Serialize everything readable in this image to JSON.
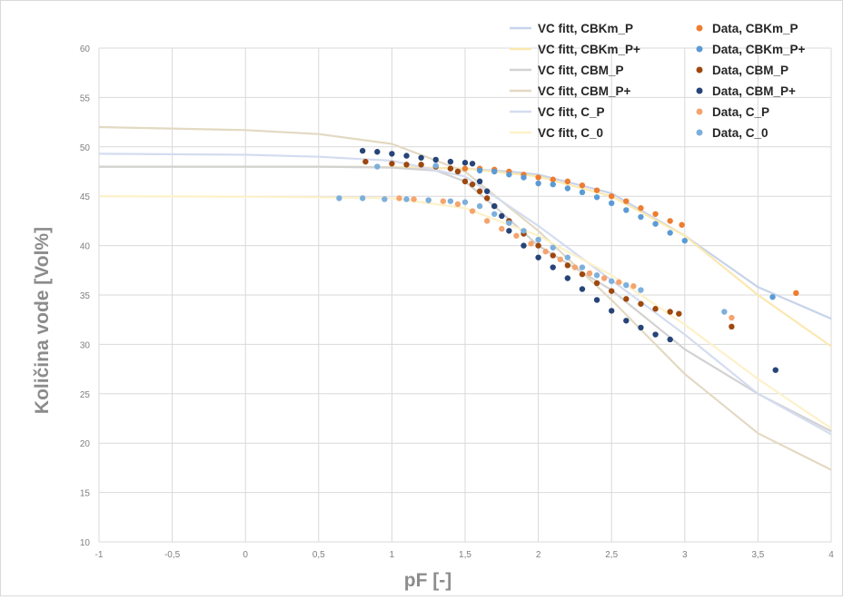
{
  "chart_data": {
    "type": "scatter",
    "title": "",
    "xlabel": "pF [-]",
    "ylabel": "Količina vode [Vol%]",
    "xlim": [
      -1,
      4
    ],
    "ylim": [
      10,
      60
    ],
    "x_ticks": [
      -1,
      -0.5,
      0,
      0.5,
      1,
      1.5,
      2,
      2.5,
      3,
      3.5,
      4
    ],
    "x_tick_labels": [
      "-1",
      "-0,5",
      "0",
      "0,5",
      "1",
      "1,5",
      "2",
      "2,5",
      "3",
      "3,5",
      "4"
    ],
    "y_ticks": [
      10,
      15,
      20,
      25,
      30,
      35,
      40,
      45,
      50,
      55,
      60
    ],
    "y_tick_labels": [
      "10",
      "15",
      "20",
      "25",
      "30",
      "35",
      "40",
      "45",
      "50",
      "55",
      "60"
    ],
    "grid": true,
    "legend": "top-right",
    "fit_series": [
      {
        "name": "VC fitt, CBKm_P",
        "color": "#c7d3ea",
        "points": [
          [
            -1,
            48.0
          ],
          [
            0,
            48.0
          ],
          [
            0.5,
            48.0
          ],
          [
            1,
            47.95
          ],
          [
            1.5,
            47.8
          ],
          [
            1.8,
            47.5
          ],
          [
            2.0,
            47.2
          ],
          [
            2.5,
            45.3
          ],
          [
            3.0,
            41.0
          ],
          [
            3.5,
            35.8
          ],
          [
            4,
            32.6
          ]
        ]
      },
      {
        "name": "VC fitt, CBKm_P+",
        "color": "#fbe8b0",
        "points": [
          [
            -1,
            48.0
          ],
          [
            0,
            48.0
          ],
          [
            0.5,
            48.0
          ],
          [
            1,
            47.95
          ],
          [
            1.5,
            47.8
          ],
          [
            2.0,
            47.0
          ],
          [
            2.5,
            45.0
          ],
          [
            3.0,
            41.0
          ],
          [
            3.5,
            35.0
          ],
          [
            4,
            29.8
          ]
        ]
      },
      {
        "name": "VC fitt, CBM_P",
        "color": "#d2d2d2",
        "points": [
          [
            -1,
            48.0
          ],
          [
            0,
            48.0
          ],
          [
            0.5,
            48.0
          ],
          [
            1,
            47.9
          ],
          [
            1.3,
            47.6
          ],
          [
            1.5,
            46.5
          ],
          [
            1.7,
            44.0
          ],
          [
            2.0,
            40.0
          ],
          [
            2.5,
            35.5
          ],
          [
            3.0,
            29.5
          ],
          [
            3.5,
            25.0
          ],
          [
            4,
            21.2
          ]
        ]
      },
      {
        "name": "VC fitt, CBM_P+",
        "color": "#e3d9c2",
        "points": [
          [
            -1,
            52.0
          ],
          [
            0,
            51.7
          ],
          [
            0.5,
            51.3
          ],
          [
            1,
            50.3
          ],
          [
            1.5,
            47.5
          ],
          [
            2.0,
            41.5
          ],
          [
            2.5,
            34.5
          ],
          [
            3.0,
            27.0
          ],
          [
            3.5,
            21.0
          ],
          [
            4,
            17.3
          ]
        ]
      },
      {
        "name": "VC fitt, C_P",
        "color": "#d4dcf0",
        "points": [
          [
            -1,
            49.3
          ],
          [
            0,
            49.2
          ],
          [
            0.5,
            49.0
          ],
          [
            1,
            48.6
          ],
          [
            1.5,
            47.0
          ],
          [
            2.0,
            42.0
          ],
          [
            2.5,
            36.5
          ],
          [
            3.0,
            31.0
          ],
          [
            3.5,
            25.0
          ],
          [
            4,
            20.9
          ]
        ]
      },
      {
        "name": "VC fitt, C_0",
        "color": "#fdf1c9",
        "points": [
          [
            -1,
            45.0
          ],
          [
            0,
            44.95
          ],
          [
            0.5,
            44.9
          ],
          [
            1,
            44.8
          ],
          [
            1.5,
            43.8
          ],
          [
            2.0,
            41.0
          ],
          [
            2.5,
            37.0
          ],
          [
            3.0,
            32.0
          ],
          [
            3.5,
            26.5
          ],
          [
            4,
            21.5
          ]
        ]
      }
    ],
    "data_series": [
      {
        "name": "Data, CBKm_P",
        "color": "#ed7d31",
        "points": [
          [
            1.5,
            47.8
          ],
          [
            1.6,
            47.8
          ],
          [
            1.7,
            47.7
          ],
          [
            1.8,
            47.5
          ],
          [
            1.9,
            47.2
          ],
          [
            2.0,
            46.9
          ],
          [
            2.1,
            46.7
          ],
          [
            2.2,
            46.5
          ],
          [
            2.3,
            46.1
          ],
          [
            2.4,
            45.6
          ],
          [
            2.5,
            45.0
          ],
          [
            2.6,
            44.5
          ],
          [
            2.7,
            43.8
          ],
          [
            2.8,
            43.2
          ],
          [
            2.9,
            42.5
          ],
          [
            2.98,
            42.1
          ],
          [
            3.76,
            35.2
          ]
        ]
      },
      {
        "name": "Data, CBKm_P+",
        "color": "#5b9bd5",
        "points": [
          [
            1.6,
            47.6
          ],
          [
            1.7,
            47.5
          ],
          [
            1.8,
            47.2
          ],
          [
            1.9,
            46.9
          ],
          [
            2.0,
            46.3
          ],
          [
            2.1,
            46.2
          ],
          [
            2.2,
            45.8
          ],
          [
            2.3,
            45.4
          ],
          [
            2.4,
            44.9
          ],
          [
            2.5,
            44.3
          ],
          [
            2.6,
            43.6
          ],
          [
            2.7,
            42.9
          ],
          [
            2.8,
            42.2
          ],
          [
            2.9,
            41.3
          ],
          [
            3.0,
            40.5
          ],
          [
            3.6,
            34.8
          ]
        ]
      },
      {
        "name": "Data, CBM_P",
        "color": "#9e480e",
        "points": [
          [
            0.82,
            48.5
          ],
          [
            1.0,
            48.3
          ],
          [
            1.1,
            48.2
          ],
          [
            1.2,
            48.2
          ],
          [
            1.3,
            48.0
          ],
          [
            1.4,
            47.8
          ],
          [
            1.45,
            47.5
          ],
          [
            1.5,
            46.5
          ],
          [
            1.55,
            46.2
          ],
          [
            1.6,
            45.5
          ],
          [
            1.65,
            44.8
          ],
          [
            1.7,
            44.0
          ],
          [
            1.8,
            42.5
          ],
          [
            1.9,
            41.2
          ],
          [
            2.0,
            40.0
          ],
          [
            2.1,
            39.0
          ],
          [
            2.2,
            38.0
          ],
          [
            2.3,
            37.1
          ],
          [
            2.4,
            36.2
          ],
          [
            2.5,
            35.4
          ],
          [
            2.6,
            34.6
          ],
          [
            2.7,
            34.1
          ],
          [
            2.8,
            33.6
          ],
          [
            2.9,
            33.3
          ],
          [
            2.96,
            33.1
          ],
          [
            3.32,
            31.8
          ]
        ]
      },
      {
        "name": "Data, CBM_P+",
        "color": "#264478",
        "points": [
          [
            0.8,
            49.6
          ],
          [
            0.9,
            49.5
          ],
          [
            1.0,
            49.3
          ],
          [
            1.1,
            49.1
          ],
          [
            1.2,
            48.9
          ],
          [
            1.3,
            48.7
          ],
          [
            1.4,
            48.5
          ],
          [
            1.5,
            48.4
          ],
          [
            1.55,
            48.3
          ],
          [
            1.6,
            46.5
          ],
          [
            1.65,
            45.5
          ],
          [
            1.7,
            44.0
          ],
          [
            1.75,
            43.0
          ],
          [
            1.8,
            41.5
          ],
          [
            1.9,
            40.0
          ],
          [
            2.0,
            38.8
          ],
          [
            2.1,
            37.8
          ],
          [
            2.2,
            36.7
          ],
          [
            2.3,
            35.6
          ],
          [
            2.4,
            34.5
          ],
          [
            2.5,
            33.4
          ],
          [
            2.6,
            32.4
          ],
          [
            2.7,
            31.7
          ],
          [
            2.8,
            31.0
          ],
          [
            2.9,
            30.5
          ],
          [
            3.62,
            27.4
          ]
        ]
      },
      {
        "name": "Data, C_P",
        "color": "#f4a46f",
        "points": [
          [
            1.05,
            44.8
          ],
          [
            1.15,
            44.7
          ],
          [
            1.25,
            44.6
          ],
          [
            1.35,
            44.5
          ],
          [
            1.45,
            44.2
          ],
          [
            1.55,
            43.5
          ],
          [
            1.65,
            42.5
          ],
          [
            1.75,
            41.7
          ],
          [
            1.85,
            41.0
          ],
          [
            1.95,
            40.2
          ],
          [
            2.05,
            39.4
          ],
          [
            2.15,
            38.6
          ],
          [
            2.25,
            37.8
          ],
          [
            2.35,
            37.2
          ],
          [
            2.45,
            36.7
          ],
          [
            2.55,
            36.3
          ],
          [
            2.65,
            35.9
          ],
          [
            3.32,
            32.7
          ]
        ]
      },
      {
        "name": "Data, C_0",
        "color": "#7cafdd",
        "points": [
          [
            0.64,
            44.8
          ],
          [
            0.8,
            44.8
          ],
          [
            0.95,
            44.7
          ],
          [
            1.1,
            44.7
          ],
          [
            1.25,
            44.6
          ],
          [
            1.4,
            44.5
          ],
          [
            1.5,
            44.4
          ],
          [
            1.6,
            44.0
          ],
          [
            1.7,
            43.2
          ],
          [
            1.8,
            42.3
          ],
          [
            1.9,
            41.5
          ],
          [
            2.0,
            40.6
          ],
          [
            2.1,
            39.8
          ],
          [
            2.2,
            38.8
          ],
          [
            2.3,
            37.8
          ],
          [
            2.4,
            37.0
          ],
          [
            2.5,
            36.4
          ],
          [
            2.6,
            36.0
          ],
          [
            2.7,
            35.5
          ],
          [
            3.27,
            33.3
          ],
          [
            0.9,
            48.0
          ],
          [
            1.3,
            48.1
          ]
        ]
      }
    ]
  }
}
